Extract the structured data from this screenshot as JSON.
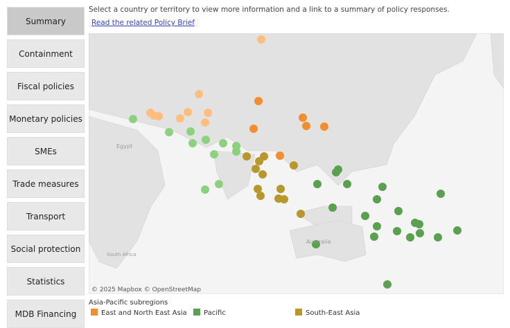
{
  "sidebar": {
    "buttons": [
      "Summary",
      "Containment",
      "Fiscal policies",
      "Monetary policies",
      "SMEs",
      "Trade measures",
      "Transport",
      "Social protection",
      "Statistics",
      "MDB Financing"
    ]
  },
  "header": {
    "instruction": "Select a country or territory to view more information and a link to a summary of policy responses.",
    "link": "Read the related Policy Brief"
  },
  "map": {
    "labels": [
      "Egypt",
      "Australia",
      "South Africa"
    ],
    "attribution": "© 2025 Mapbox © OpenStreetMap"
  },
  "legend": {
    "title": "Asia-Pacific subregions",
    "items": [
      {
        "name": "East and North East Asia",
        "color": "#f28e2b"
      },
      {
        "name": "Pacific",
        "color": "#59a14f"
      },
      {
        "name": "South-East Asia",
        "color": "#b8972b"
      }
    ]
  }
}
